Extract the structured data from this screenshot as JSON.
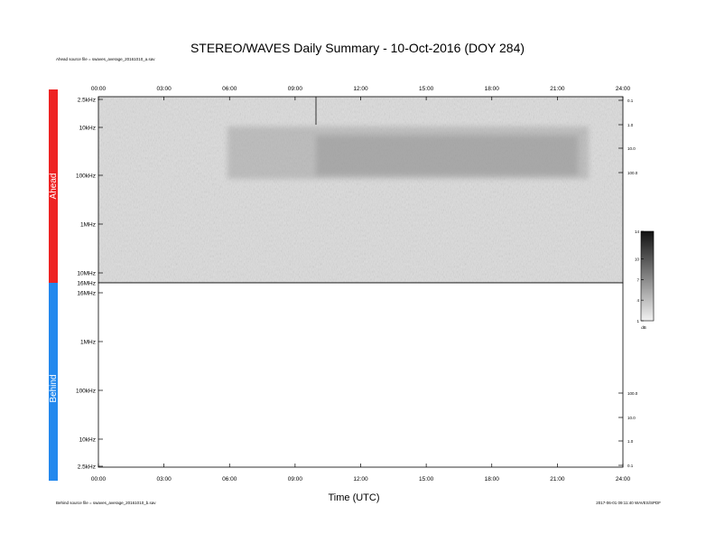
{
  "chart_data": {
    "type": "heatmap",
    "title": "STEREO/WAVES Daily Summary - 10-Oct-2016 (DOY 284)",
    "xlabel": "Time (UTC)",
    "x_ticks": [
      "00:00",
      "03:00",
      "06:00",
      "09:00",
      "12:00",
      "15:00",
      "18:00",
      "21:00",
      "24:00"
    ],
    "xlim": [
      "00:00",
      "24:00"
    ],
    "sources": {
      "ahead": "Ahead source file = swaves_average_20161010_a.sav",
      "behind": "Behind source file = swaves_average_20161010_b.sav"
    },
    "footer_right": "2017-06-01 09:11:40 WAVES/SPDF",
    "panels": [
      {
        "name": "Ahead",
        "color": "#ee2222",
        "y_ticks": [
          "2.5kHz",
          "10kHz",
          "100kHz",
          "1MHz",
          "10MHz",
          "16MHz"
        ],
        "right_ticks": [
          "0.1",
          "1.0",
          "10.0",
          "100.0"
        ],
        "data_present": true,
        "features": [
          {
            "label": "enhanced background",
            "from": "06:00",
            "to": "21:30",
            "freq_from": "10kHz",
            "freq_to": "200kHz"
          },
          {
            "label": "type III burst",
            "time": "09:57",
            "freq_from": "2.5kHz",
            "freq_to": "10kHz"
          }
        ]
      },
      {
        "name": "Behind",
        "color": "#2288ee",
        "y_ticks": [
          "16MHz",
          "1MHz",
          "100kHz",
          "10kHz",
          "2.5kHz"
        ],
        "right_ticks": [
          "100.0",
          "10.0",
          "1.0",
          "0.1"
        ],
        "data_present": false
      }
    ],
    "colorbar": {
      "ticks": [
        "14",
        "10",
        "7",
        "4",
        "1"
      ],
      "unit": "dB",
      "range": [
        1,
        14
      ]
    }
  }
}
